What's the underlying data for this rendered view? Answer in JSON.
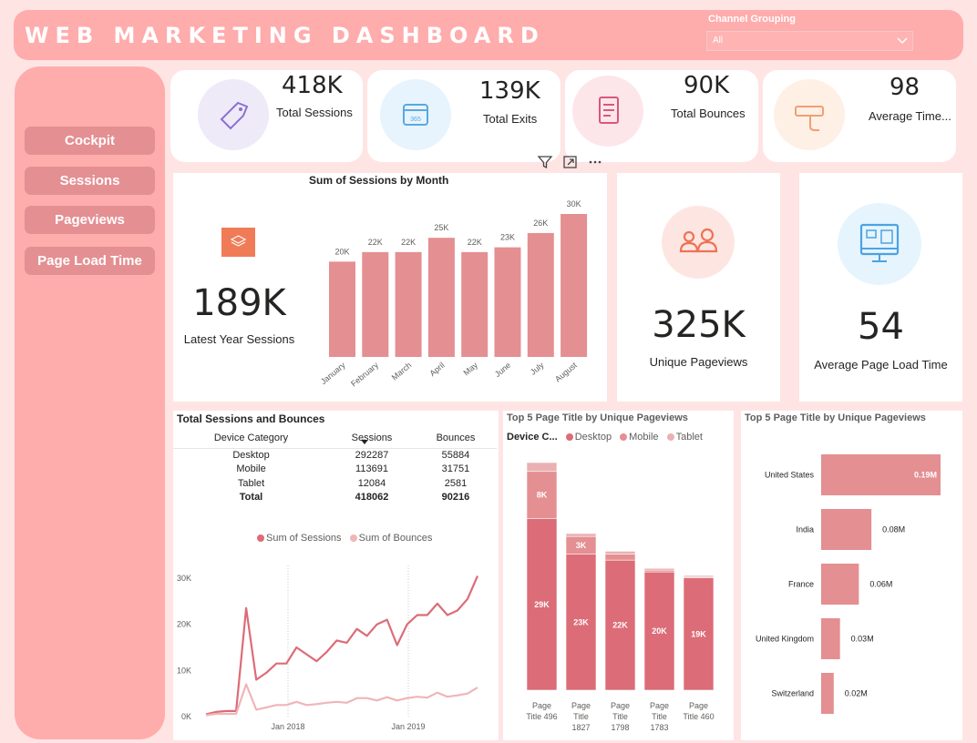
{
  "header": {
    "title": "WEB MARKETING DASHBOARD"
  },
  "filter": {
    "label": "Channel Grouping",
    "value": "All"
  },
  "nav": [
    "Cockpit",
    "Sessions",
    "Pageviews",
    "Page Load Time"
  ],
  "kpis": [
    {
      "value": "418K",
      "label": "Total Sessions",
      "icon": "tag-icon"
    },
    {
      "value": "139K",
      "label": "Total Exits",
      "icon": "calendar-icon"
    },
    {
      "value": "90K",
      "label": "Total Bounces",
      "icon": "document-icon"
    },
    {
      "value": "98",
      "label": "Average Time...",
      "icon": "hand-card-icon"
    }
  ],
  "latest": {
    "value": "189K",
    "label": "Latest Year Sessions"
  },
  "unique": {
    "value": "325K",
    "label": "Unique Pageviews"
  },
  "load": {
    "value": "54",
    "label": "Average Page Load Time"
  },
  "colors": {
    "bar": "#e48f92",
    "barDark": "#dc6c77",
    "barLight": "#eab0b2",
    "line2": "#f0b5b8"
  },
  "chart_data": [
    {
      "id": "month",
      "type": "bar",
      "title": "Sum of Sessions by Month",
      "categories": [
        "January",
        "February",
        "March",
        "April",
        "May",
        "June",
        "July",
        "August"
      ],
      "values": [
        20,
        22,
        22,
        25,
        22,
        23,
        26,
        30
      ],
      "labels": [
        "20K",
        "22K",
        "22K",
        "25K",
        "22K",
        "23K",
        "26K",
        "30K"
      ],
      "ylim": [
        0,
        30
      ]
    },
    {
      "id": "table",
      "type": "table",
      "title": "Total Sessions and Bounces",
      "columns": [
        "Device Category",
        "Sessions",
        "Bounces"
      ],
      "rows": [
        [
          "Desktop",
          "292287",
          "55884"
        ],
        [
          "Mobile",
          "113691",
          "31751"
        ],
        [
          "Tablet",
          "12084",
          "2581"
        ]
      ],
      "total": [
        "Total",
        "418062",
        "90216"
      ]
    },
    {
      "id": "line",
      "type": "line",
      "legend": [
        "Sum of Sessions",
        "Sum of Bounces"
      ],
      "xticks": [
        "Jan 2018",
        "Jan 2019"
      ],
      "yticks": [
        "0K",
        "10K",
        "20K",
        "30K"
      ],
      "ylim": [
        0,
        30
      ],
      "series": [
        {
          "name": "Sum of Sessions",
          "values": [
            0.5,
            1,
            1.2,
            1.2,
            23.5,
            8,
            9.5,
            11.5,
            11.5,
            15,
            13.5,
            12,
            14,
            16.5,
            16,
            19,
            17.5,
            20,
            21,
            15.5,
            20,
            22,
            22,
            24.5,
            22,
            23,
            25.5,
            30.5
          ]
        },
        {
          "name": "Sum of Bounces",
          "values": [
            0.3,
            0.6,
            0.6,
            0.6,
            7,
            1.5,
            2,
            2.5,
            2.5,
            3.2,
            2.5,
            2.7,
            3,
            3.2,
            3,
            4,
            4,
            3.5,
            4.2,
            3.5,
            4,
            4.3,
            4.1,
            5.2,
            4.3,
            4.6,
            5,
            6.3
          ]
        }
      ]
    },
    {
      "id": "stacked",
      "type": "bar",
      "title": "Top 5 Page Title by Unique Pageviews",
      "legend_title": "Device C...",
      "legend": [
        "Desktop",
        "Mobile",
        "Tablet"
      ],
      "categories": [
        "Page Title 496",
        "Page Title 1827",
        "Page Title 1798",
        "Page Title 1783",
        "Page Title 460"
      ],
      "series": [
        {
          "name": "Desktop",
          "values": [
            29,
            23,
            22,
            20,
            19
          ],
          "labels": [
            "29K",
            "23K",
            "22K",
            "20K",
            "19K"
          ]
        },
        {
          "name": "Mobile",
          "values": [
            8,
            3,
            1,
            0.3,
            0.2
          ],
          "labels": [
            "8K",
            "3K",
            "",
            "",
            ""
          ]
        },
        {
          "name": "Tablet",
          "values": [
            1.5,
            0.5,
            0.5,
            0.3,
            0.2
          ],
          "labels": [
            "",
            "",
            "",
            "",
            ""
          ]
        }
      ],
      "ylim": [
        0,
        38.5
      ]
    },
    {
      "id": "hbar",
      "type": "bar",
      "title": "Top 5 Page Title by Unique Pageviews",
      "categories": [
        "United States",
        "India",
        "France",
        "United Kingdom",
        "Switzerland"
      ],
      "values": [
        0.19,
        0.08,
        0.06,
        0.03,
        0.02
      ],
      "labels": [
        "0.19M",
        "0.08M",
        "0.06M",
        "0.03M",
        "0.02M"
      ],
      "xlim": [
        0,
        0.19
      ]
    }
  ]
}
